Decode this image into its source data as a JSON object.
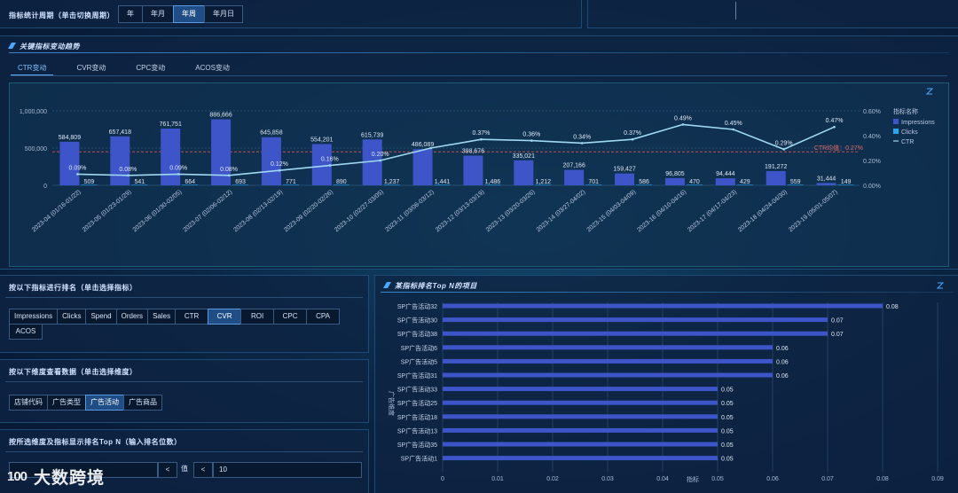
{
  "period": {
    "title": "指标统计周期（单击切换周期）",
    "options": [
      "年",
      "年月",
      "年周",
      "年月日"
    ],
    "active_index": 2
  },
  "trend": {
    "title": "关键指标变动趋势",
    "tabs": [
      "CTR变动",
      "CVR变动",
      "CPC变动",
      "ACOS变动"
    ],
    "active_tab": 0
  },
  "chart_data": [
    {
      "type": "bar",
      "title": "关键指标变动趋势",
      "categories": [
        "2023-04 (01/16-01/22)",
        "2023-05 (01/23-01/29)",
        "2023-06 (01/30-02/05)",
        "2023-07 (02/06-02/12)",
        "2023-08 (02/13-02/19)",
        "2023-09 (02/20-02/26)",
        "2023-10 (02/27-03/05)",
        "2023-11 (03/06-03/12)",
        "2023-12 (03/13-03/19)",
        "2023-13 (03/20-03/26)",
        "2023-14 (03/27-04/02)",
        "2023-15 (04/03-04/09)",
        "2023-16 (04/10-04/16)",
        "2023-17 (04/17-04/23)",
        "2023-18 (04/24-04/30)",
        "2023-19 (05/01-05/07)"
      ],
      "series": [
        {
          "name": "Impressions",
          "axis": "left",
          "values": [
            584809,
            657418,
            761751,
            886666,
            645858,
            554201,
            615739,
            486089,
            398676,
            335021,
            207166,
            159427,
            96805,
            94444,
            191272,
            31444
          ],
          "labels": [
            "584,809",
            "657,418",
            "761,751",
            "886,666",
            "645,858",
            "554,201",
            "615,739",
            "486,089",
            "398,676",
            "335,021",
            "207,166",
            "159,427",
            "96,805",
            "94,444",
            "191,272",
            "31,444"
          ]
        },
        {
          "name": "Clicks",
          "axis": "left",
          "values": [
            509,
            541,
            664,
            693,
            771,
            890,
            1237,
            1441,
            1486,
            1212,
            701,
            586,
            470,
            429,
            559,
            149
          ],
          "labels": [
            "509",
            "541",
            "664",
            "693",
            "771",
            "890",
            "1,237",
            "1,441",
            "1,486",
            "1,212",
            "701",
            "586",
            "470",
            "429",
            "559",
            "149"
          ]
        },
        {
          "name": "CTR",
          "axis": "right",
          "type": "line",
          "values": [
            0.09,
            0.08,
            0.09,
            0.08,
            0.12,
            0.16,
            0.2,
            0.3,
            0.37,
            0.36,
            0.34,
            0.37,
            0.49,
            0.45,
            0.29,
            0.47
          ],
          "labels": [
            "0.09%",
            "0.08%",
            "0.09%",
            "0.08%",
            "0.12%",
            "0.16%",
            "0.20%",
            "",
            "0.37%",
            "0.36%",
            "0.34%",
            "0.37%",
            "0.49%",
            "0.45%",
            "0.29%",
            "0.47%"
          ]
        }
      ],
      "y_left": {
        "range": [
          0,
          1000000
        ],
        "ticks": [
          "0",
          "500,000",
          "1,000,000"
        ]
      },
      "y_right": {
        "range": [
          0,
          0.6
        ],
        "ticks": [
          "0.00%",
          "0.20%",
          "0.40%",
          "0.60%"
        ]
      },
      "legend": {
        "title": "指标名称",
        "position": "top-right"
      },
      "reference_line": {
        "label": "CTR均值：0.27%",
        "value": 0.27
      }
    },
    {
      "type": "bar",
      "orientation": "horizontal",
      "title": "某指标排名Top N的项目",
      "categories": [
        "SP广告活动32",
        "SP广告活动30",
        "SP广告活动38",
        "SP广告活动6",
        "SP广告活动5",
        "SP广告活动31",
        "SP广告活动33",
        "SP广告活动25",
        "SP广告活动18",
        "SP广告活动13",
        "SP广告活动35",
        "SP广告活动1"
      ],
      "values": [
        0.08,
        0.07,
        0.07,
        0.06,
        0.06,
        0.06,
        0.05,
        0.05,
        0.05,
        0.05,
        0.05,
        0.05
      ],
      "value_labels": [
        "0.08",
        "0.07",
        "0.07",
        "0.06",
        "0.06",
        "0.06",
        "0.05",
        "0.05",
        "0.05",
        "0.05",
        "0.05",
        "0.05"
      ],
      "xlabel": "指标",
      "ylabel": "广告维度",
      "xlim": [
        0,
        0.09
      ],
      "x_ticks": [
        "0",
        "0.01",
        "0.02",
        "0.03",
        "0.04",
        "0.05",
        "0.06",
        "0.07",
        "0.08",
        "0.09"
      ]
    }
  ],
  "rank_metric": {
    "title": "按以下指标进行排名（单击选择指标）",
    "options": [
      "Impressions",
      "Clicks",
      "Spend",
      "Orders",
      "Sales",
      "CTR",
      "CVR",
      "ROI",
      "CPC",
      "CPA",
      "ACOS"
    ],
    "active_index": 6
  },
  "dimension": {
    "title": "按以下维度查看数据（单击选择维度）",
    "options": [
      "店铺代码",
      "广告类型",
      "广告活动",
      "广告商品"
    ],
    "active_index": 2
  },
  "topn": {
    "title": "按所选维度及指标显示排名Top N（输入排名位数）",
    "label_value": "值",
    "symbol": "<",
    "value": "10"
  },
  "watermark": {
    "mark": "100",
    "text": "大数跨境"
  },
  "colors": {
    "bar": "#3d55c9",
    "line": "#9fd8f2",
    "clicks": "#2aa3f0",
    "ref": "#d9534f"
  }
}
